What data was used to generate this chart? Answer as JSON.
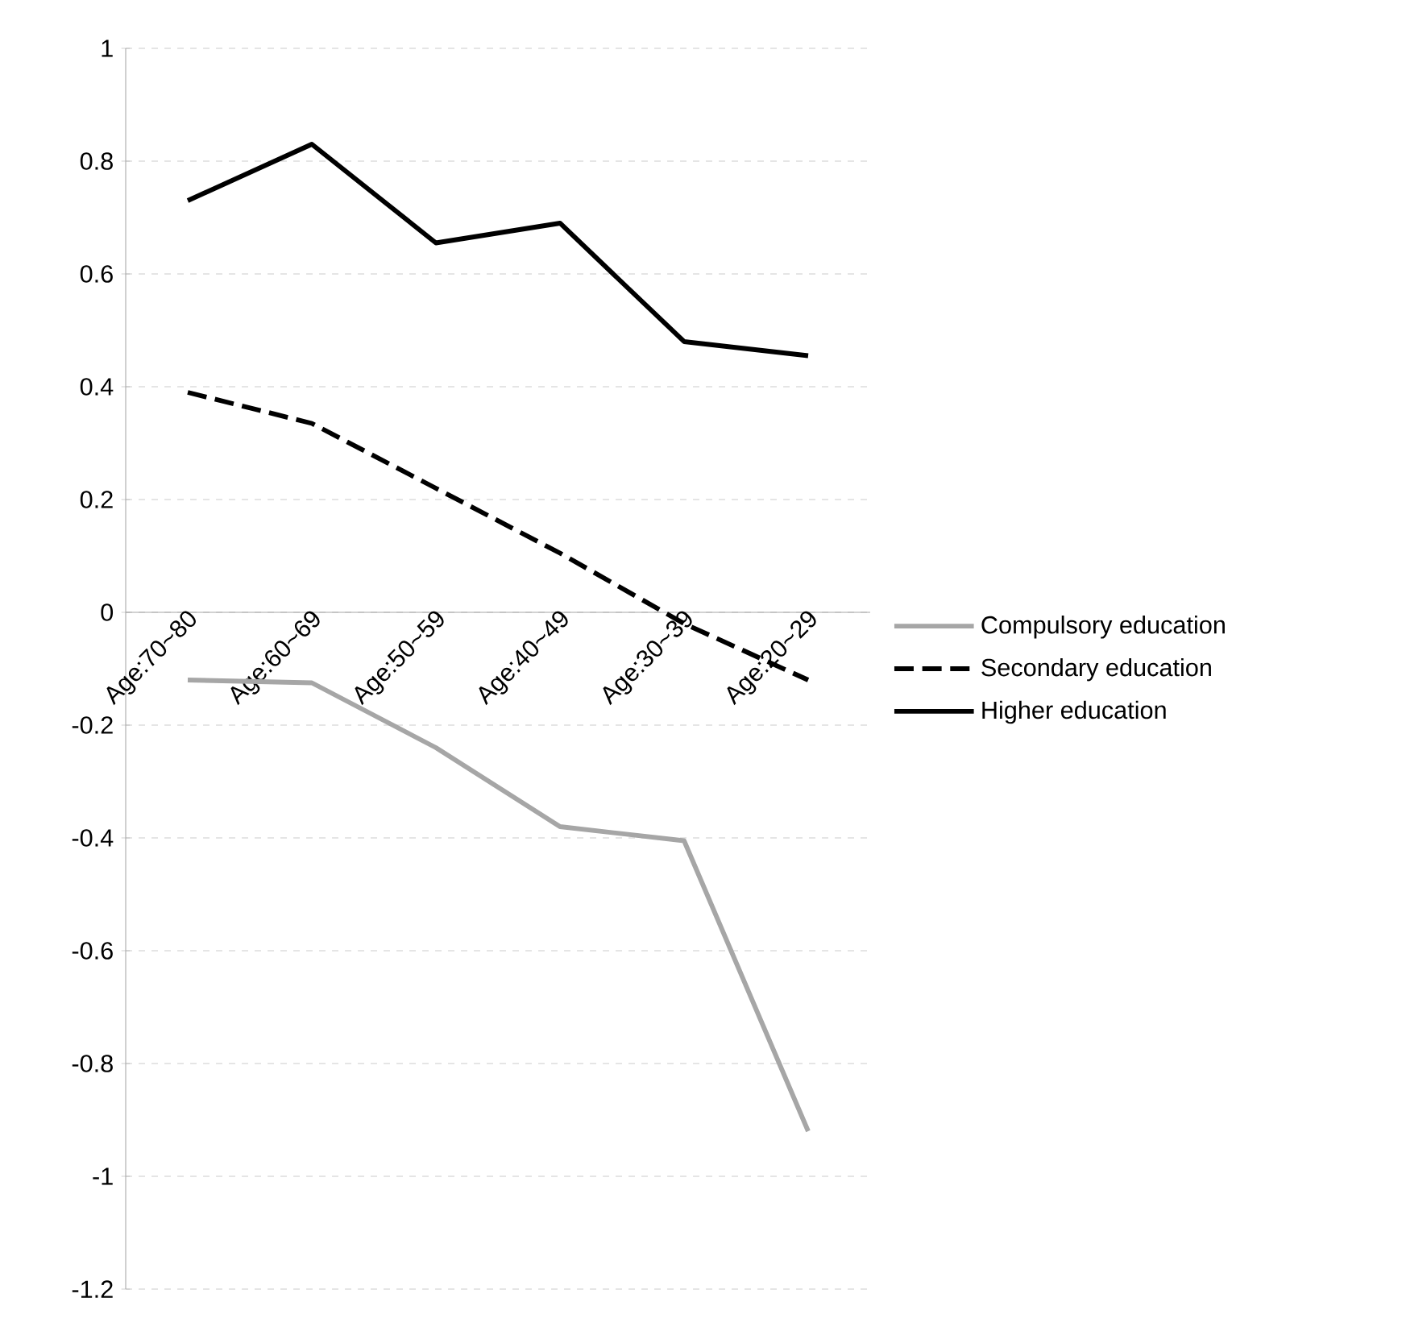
{
  "chart_data": {
    "type": "line",
    "categories": [
      "Age:70~80",
      "Age:60~69",
      "Age:50~59",
      "Age:40~49",
      "Age:30~39",
      "Age:20~29"
    ],
    "series": [
      {
        "name": "Compulsory education",
        "color": "#a6a6a6",
        "line_style": "solid",
        "values": [
          -0.12,
          -0.125,
          -0.24,
          -0.38,
          -0.405,
          -0.92
        ]
      },
      {
        "name": "Secondary education",
        "color": "#000000",
        "line_style": "dashed",
        "values": [
          0.39,
          0.335,
          0.22,
          0.105,
          -0.02,
          -0.12
        ]
      },
      {
        "name": "Higher education",
        "color": "#000000",
        "line_style": "solid",
        "values": [
          0.73,
          0.83,
          0.655,
          0.69,
          0.48,
          0.455
        ]
      }
    ],
    "ylim": [
      -1.2,
      1
    ],
    "yticks": [
      -1.2,
      -1,
      -0.8,
      -0.6,
      -0.4,
      -0.2,
      0,
      0.2,
      0.4,
      0.6,
      0.8,
      1
    ],
    "grid": "y",
    "legend": "right",
    "marker": "none"
  }
}
